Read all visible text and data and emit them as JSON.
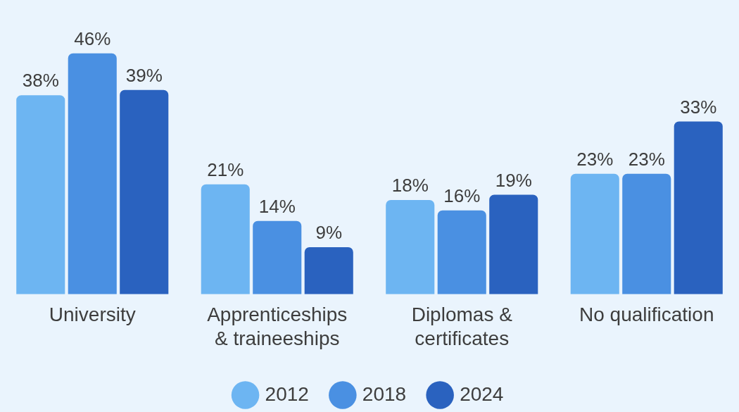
{
  "chart_data": {
    "type": "bar",
    "categories": [
      "University",
      "Apprenticeships & traineeships",
      "Diplomas & certificates",
      "No qualification"
    ],
    "series": [
      {
        "name": "2012",
        "color": "#6db5f2",
        "values": [
          38,
          21,
          18,
          23
        ],
        "value_labels": [
          "38%",
          "21%",
          "18%",
          "23%"
        ]
      },
      {
        "name": "2018",
        "color": "#4a90e2",
        "values": [
          46,
          14,
          16,
          23
        ],
        "value_labels": [
          "46%",
          "14%",
          "16%",
          "23%"
        ]
      },
      {
        "name": "2024",
        "color": "#2a62bf",
        "values": [
          39,
          9,
          19,
          33
        ],
        "value_labels": [
          "39%",
          "9%",
          "19%",
          "33%"
        ]
      }
    ],
    "grid": false,
    "legend": "bottom"
  }
}
